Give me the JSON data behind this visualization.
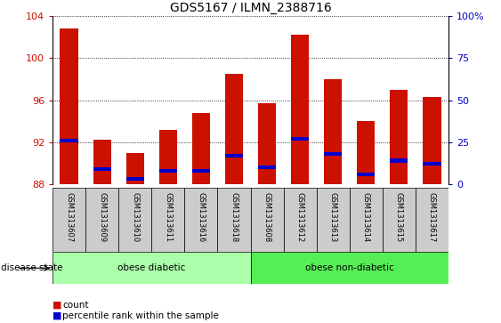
{
  "title": "GDS5167 / ILMN_2388716",
  "samples": [
    "GSM1313607",
    "GSM1313609",
    "GSM1313610",
    "GSM1313611",
    "GSM1313616",
    "GSM1313618",
    "GSM1313608",
    "GSM1313612",
    "GSM1313613",
    "GSM1313614",
    "GSM1313615",
    "GSM1313617"
  ],
  "count_values": [
    102.8,
    92.2,
    91.0,
    93.2,
    94.8,
    98.5,
    95.7,
    102.2,
    98.0,
    94.0,
    97.0,
    96.3
  ],
  "percentile_values": [
    26,
    9,
    3,
    8,
    8,
    17,
    10,
    27,
    18,
    6,
    14,
    12
  ],
  "ylim_left": [
    88,
    104
  ],
  "ylim_right": [
    0,
    100
  ],
  "yticks_left": [
    88,
    92,
    96,
    100,
    104
  ],
  "yticks_right": [
    0,
    25,
    50,
    75,
    100
  ],
  "base_value": 88,
  "bar_width": 0.55,
  "red_color": "#cc1100",
  "blue_color": "#0000cc",
  "groups": [
    {
      "label": "obese diabetic",
      "indices": [
        0,
        1,
        2,
        3,
        4,
        5
      ],
      "color": "#aaffaa"
    },
    {
      "label": "obese non-diabetic",
      "indices": [
        6,
        7,
        8,
        9,
        10,
        11
      ],
      "color": "#55ee55"
    }
  ],
  "disease_label": "disease state",
  "legend_count_label": "count",
  "legend_percentile_label": "percentile rank within the sample",
  "red_color_dark": "#cc1100",
  "blue_color_dark": "#0000cc",
  "background_plot": "#ffffff",
  "background_xtick": "#cccccc",
  "grid_color": "#000000",
  "title_fontsize": 10,
  "tick_fontsize": 8,
  "sample_fontsize": 6,
  "legend_fontsize": 7.5,
  "disease_fontsize": 7.5
}
